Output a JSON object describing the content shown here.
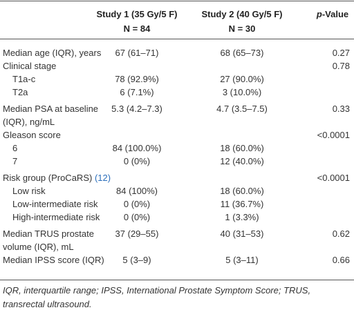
{
  "table": {
    "header": {
      "columns": [
        {
          "title": "Study 1 (35 Gy/5 F)",
          "n": "N = 84"
        },
        {
          "title": "Study 2 (40 Gy/5 F)",
          "n": "N = 30"
        }
      ],
      "p_column": [
        "p",
        "-Value"
      ]
    },
    "rows": [
      {
        "label": [
          "Median age (IQR), years"
        ],
        "indent": false,
        "cells": [
          "67 (61–71)",
          "68 (65–73)",
          "0.27"
        ]
      },
      {
        "label": [
          "Clinical stage"
        ],
        "indent": false,
        "cells": [
          null,
          null,
          "0.78"
        ]
      },
      {
        "label": [
          "T1a-c"
        ],
        "indent": true,
        "cells": [
          "78 (92.9%)",
          "27 (90.0%)",
          null
        ]
      },
      {
        "label": [
          "T2a"
        ],
        "indent": true,
        "cells": [
          "6 (7.1%)",
          "3 (10.0%)",
          null
        ]
      },
      {
        "label": [
          "Median PSA at baseline",
          "(IQR), ng/mL"
        ],
        "indent": false,
        "cells": [
          "5.3 (4.2–7.3)",
          "4.7 (3.5–7.5)",
          "0.33"
        ]
      },
      {
        "label": [
          "Gleason score"
        ],
        "indent": false,
        "cells": [
          null,
          null,
          "<0.0001"
        ]
      },
      {
        "label": [
          "6"
        ],
        "indent": true,
        "cells": [
          "84 (100.0%)",
          "18 (60.0%)",
          null
        ]
      },
      {
        "label": [
          "7"
        ],
        "indent": true,
        "cells": [
          "0 (0%)",
          "12 (40.0%)",
          null
        ]
      },
      {
        "label": [
          "Risk group (ProCaRS)"
        ],
        "citation": "(12)",
        "indent": false,
        "cells": [
          null,
          null,
          "<0.0001"
        ]
      },
      {
        "label": [
          "Low risk"
        ],
        "indent": true,
        "cells": [
          "84 (100%)",
          "18 (60.0%)",
          null
        ]
      },
      {
        "label": [
          "Low-intermediate risk"
        ],
        "indent": true,
        "cells": [
          "0 (0%)",
          "11 (36.7%)",
          null
        ]
      },
      {
        "label": [
          "High-intermediate risk"
        ],
        "indent": true,
        "cells": [
          "0 (0%)",
          "1 (3.3%)",
          null
        ]
      },
      {
        "label": [
          "Median TRUS prostate",
          "volume (IQR), mL"
        ],
        "indent": false,
        "cells": [
          "37 (29–55)",
          "40 (31–53)",
          "0.62"
        ]
      },
      {
        "label": [
          "Median IPSS score (IQR)"
        ],
        "indent": false,
        "cells": [
          "5 (3–9)",
          "5 (3–11)",
          "0.66"
        ]
      }
    ],
    "footnote": [
      "IQR, interquartile range; IPSS, International Prostate Symptom Score; TRUS,",
      "transrectal ultrasound."
    ]
  }
}
